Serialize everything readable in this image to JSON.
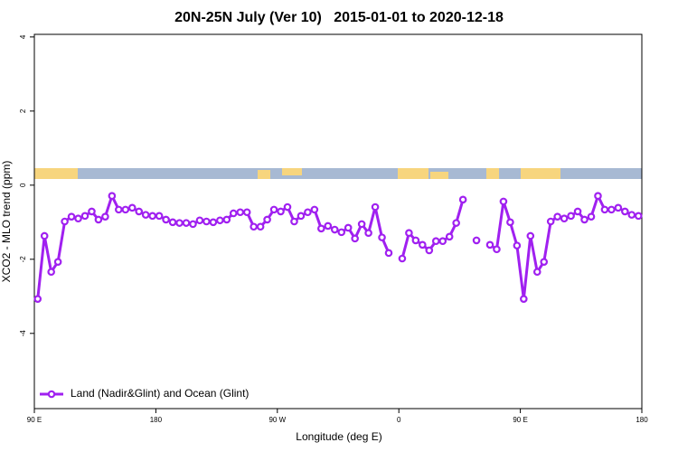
{
  "chart_data": {
    "type": "line",
    "title": "20N-25N July (Ver 10)   2015-01-01 to 2020-12-18",
    "x_label": "Longitude (deg E)",
    "y_label": "XCO2 - MLO trend (ppm)",
    "xlim": [
      90,
      540
    ],
    "ylim": [
      -6.03,
      4.07
    ],
    "xticks": [
      {
        "value": 90,
        "label": "90 E"
      },
      180,
      {
        "value": 270,
        "label": "90 W"
      },
      {
        "value": 360,
        "label": "0"
      },
      {
        "value": 450,
        "label": "90 E"
      },
      {
        "value": 540,
        "label": "180"
      }
    ],
    "yticks": [
      -4,
      -2,
      0,
      2,
      4
    ],
    "legend": "bottom-left",
    "x": [
      92.5,
      97.5,
      102.5,
      107.5,
      112.5,
      117.5,
      122.5,
      127.5,
      132.5,
      137.5,
      142.5,
      147.5,
      152.5,
      157.5,
      162.5,
      167.5,
      172.5,
      177.5,
      182.5,
      187.5,
      192.5,
      197.5,
      202.5,
      207.5,
      212.5,
      217.5,
      222.5,
      227.5,
      232.5,
      237.5,
      242.5,
      247.5,
      252.5,
      257.5,
      262.5,
      267.5,
      272.5,
      277.5,
      282.5,
      287.5,
      292.5,
      297.5,
      302.5,
      307.5,
      312.5,
      317.5,
      322.5,
      327.5,
      332.5,
      337.5,
      342.5,
      347.5,
      352.5,
      357.5,
      362.5,
      367.5,
      372.5,
      377.5,
      382.5,
      387.5,
      392.5,
      397.5,
      402.5,
      407.5,
      412.5,
      417.5,
      422.5,
      427.5,
      432.5,
      437.5,
      442.5,
      447.5,
      452.5,
      457.5,
      462.5,
      467.5,
      472.5,
      477.5,
      482.5,
      487.5,
      492.5,
      497.5,
      502.5,
      507.5,
      512.5,
      517.5,
      522.5,
      527.5,
      532.5,
      537.5
    ],
    "series": [
      {
        "name": "Land (Nadir&Glint) and Ocean (Glint)",
        "color": "#a020f0",
        "values": [
          -3.07,
          -1.37,
          -2.34,
          -2.07,
          -0.98,
          -0.85,
          -0.9,
          -0.83,
          -0.71,
          -0.93,
          -0.85,
          -0.29,
          -0.66,
          -0.66,
          -0.61,
          -0.71,
          -0.8,
          -0.83,
          -0.83,
          -0.93,
          -1.0,
          -1.02,
          -1.02,
          -1.05,
          -0.95,
          -0.98,
          -1.0,
          -0.95,
          -0.93,
          -0.76,
          -0.73,
          -0.73,
          -1.12,
          -1.12,
          -0.93,
          -0.66,
          -0.71,
          -0.59,
          -0.98,
          -0.83,
          -0.73,
          -0.66,
          -1.17,
          -1.1,
          -1.2,
          -1.27,
          -1.15,
          -1.44,
          -1.05,
          -1.29,
          -0.59,
          -1.41,
          -1.83,
          null,
          -1.98,
          -1.29,
          -1.49,
          -1.61,
          -1.76,
          -1.51,
          -1.51,
          -1.39,
          -1.02,
          -0.39,
          null,
          -1.49,
          null,
          -1.61,
          -1.73,
          -0.44,
          -1.0,
          -1.63,
          -3.07,
          -1.37,
          -2.34,
          -2.07,
          -0.98,
          -0.85,
          -0.9,
          -0.83,
          -0.71,
          -0.93,
          -0.85,
          -0.29,
          -0.66,
          -0.66,
          -0.61,
          -0.71,
          -0.8,
          -0.83
        ]
      }
    ]
  }
}
